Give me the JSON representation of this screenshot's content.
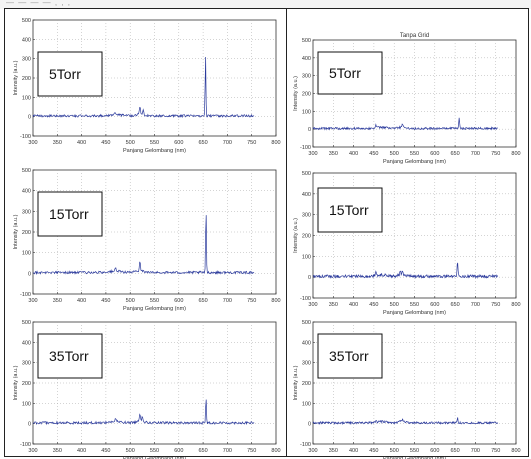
{
  "figure": {
    "header_text": "— —      —  — ,  ,      ,",
    "line_color": "#2b3a9c",
    "box_border_color": "#222222"
  },
  "chart_data": [
    {
      "type": "line",
      "title": "",
      "pressure_label": "5Torr",
      "xlabel": "Panjang Gelombang (nm)",
      "ylabel": "Intensity (a.u.)",
      "xlim": [
        300,
        800
      ],
      "ylim": [
        -100,
        500
      ],
      "xticks": [
        300,
        350,
        400,
        450,
        500,
        550,
        600,
        650,
        700,
        750,
        800
      ],
      "yticks": [
        -100,
        0,
        100,
        200,
        300,
        400,
        500
      ],
      "grid": true,
      "peaks": [
        [
          468,
          10
        ],
        [
          520,
          40
        ],
        [
          527,
          25
        ],
        [
          655,
          320
        ]
      ],
      "noise": 6,
      "x_range": [
        300,
        755
      ]
    },
    {
      "type": "line",
      "title": "Tanpa Grid",
      "pressure_label": "5Torr",
      "xlabel": "Panjang Gelombang (nm)",
      "ylabel": "Intensity (a.u.)",
      "xlim": [
        300,
        800
      ],
      "ylim": [
        -100,
        500
      ],
      "xticks": [
        300,
        350,
        400,
        450,
        500,
        550,
        600,
        650,
        700,
        750,
        800
      ],
      "yticks": [
        -100,
        0,
        100,
        200,
        300,
        400,
        500
      ],
      "grid": true,
      "peaks": [
        [
          455,
          15
        ],
        [
          520,
          20
        ],
        [
          660,
          55
        ]
      ],
      "noise": 6,
      "x_range": [
        300,
        755
      ]
    },
    {
      "type": "line",
      "title": "",
      "pressure_label": "15Torr",
      "xlabel": "Panjang Gelombang (nm)",
      "ylabel": "Intensity (a.u.)",
      "xlim": [
        300,
        800
      ],
      "ylim": [
        -100,
        500
      ],
      "xticks": [
        300,
        350,
        400,
        450,
        500,
        550,
        600,
        650,
        700,
        750,
        800
      ],
      "yticks": [
        -100,
        0,
        100,
        200,
        300,
        400,
        500
      ],
      "grid": true,
      "peaks": [
        [
          470,
          15
        ],
        [
          520,
          45
        ],
        [
          656,
          320
        ]
      ],
      "noise": 6,
      "x_range": [
        300,
        755
      ]
    },
    {
      "type": "line",
      "title": "",
      "pressure_label": "15Torr",
      "xlabel": "Panjang Gelombang (nm)",
      "ylabel": "Intensity (a.u.)",
      "xlim": [
        300,
        800
      ],
      "ylim": [
        -100,
        500
      ],
      "xticks": [
        300,
        350,
        400,
        450,
        500,
        550,
        600,
        650,
        700,
        750,
        800
      ],
      "yticks": [
        -100,
        0,
        100,
        200,
        300,
        400,
        500
      ],
      "grid": true,
      "peaks": [
        [
          455,
          25
        ],
        [
          515,
          20
        ],
        [
          520,
          25
        ],
        [
          656,
          70
        ]
      ],
      "noise": 7,
      "x_range": [
        300,
        755
      ]
    },
    {
      "type": "line",
      "title": "",
      "pressure_label": "35Torr",
      "xlabel": "Panjang Gelombang (nm)",
      "ylabel": "Intensity (a.u.)",
      "xlim": [
        300,
        800
      ],
      "ylim": [
        -100,
        500
      ],
      "xticks": [
        300,
        350,
        400,
        450,
        500,
        550,
        600,
        650,
        700,
        750,
        800
      ],
      "yticks": [
        -100,
        0,
        100,
        200,
        300,
        400,
        500
      ],
      "grid": true,
      "peaks": [
        [
          470,
          15
        ],
        [
          520,
          40
        ],
        [
          525,
          30
        ],
        [
          656,
          130
        ]
      ],
      "noise": 6,
      "x_range": [
        300,
        755
      ]
    },
    {
      "type": "line",
      "title": "",
      "pressure_label": "35Torr",
      "xlabel": "Panjang Gelombang (nm)",
      "ylabel": "Intensity (a.u.)",
      "xlim": [
        300,
        800
      ],
      "ylim": [
        -100,
        500
      ],
      "xticks": [
        300,
        350,
        400,
        450,
        500,
        550,
        600,
        650,
        700,
        750,
        800
      ],
      "yticks": [
        -100,
        0,
        100,
        200,
        300,
        400,
        500
      ],
      "grid": true,
      "peaks": [
        [
          455,
          8
        ],
        [
          520,
          10
        ],
        [
          656,
          25
        ]
      ],
      "noise": 5,
      "x_range": [
        300,
        755
      ]
    }
  ]
}
